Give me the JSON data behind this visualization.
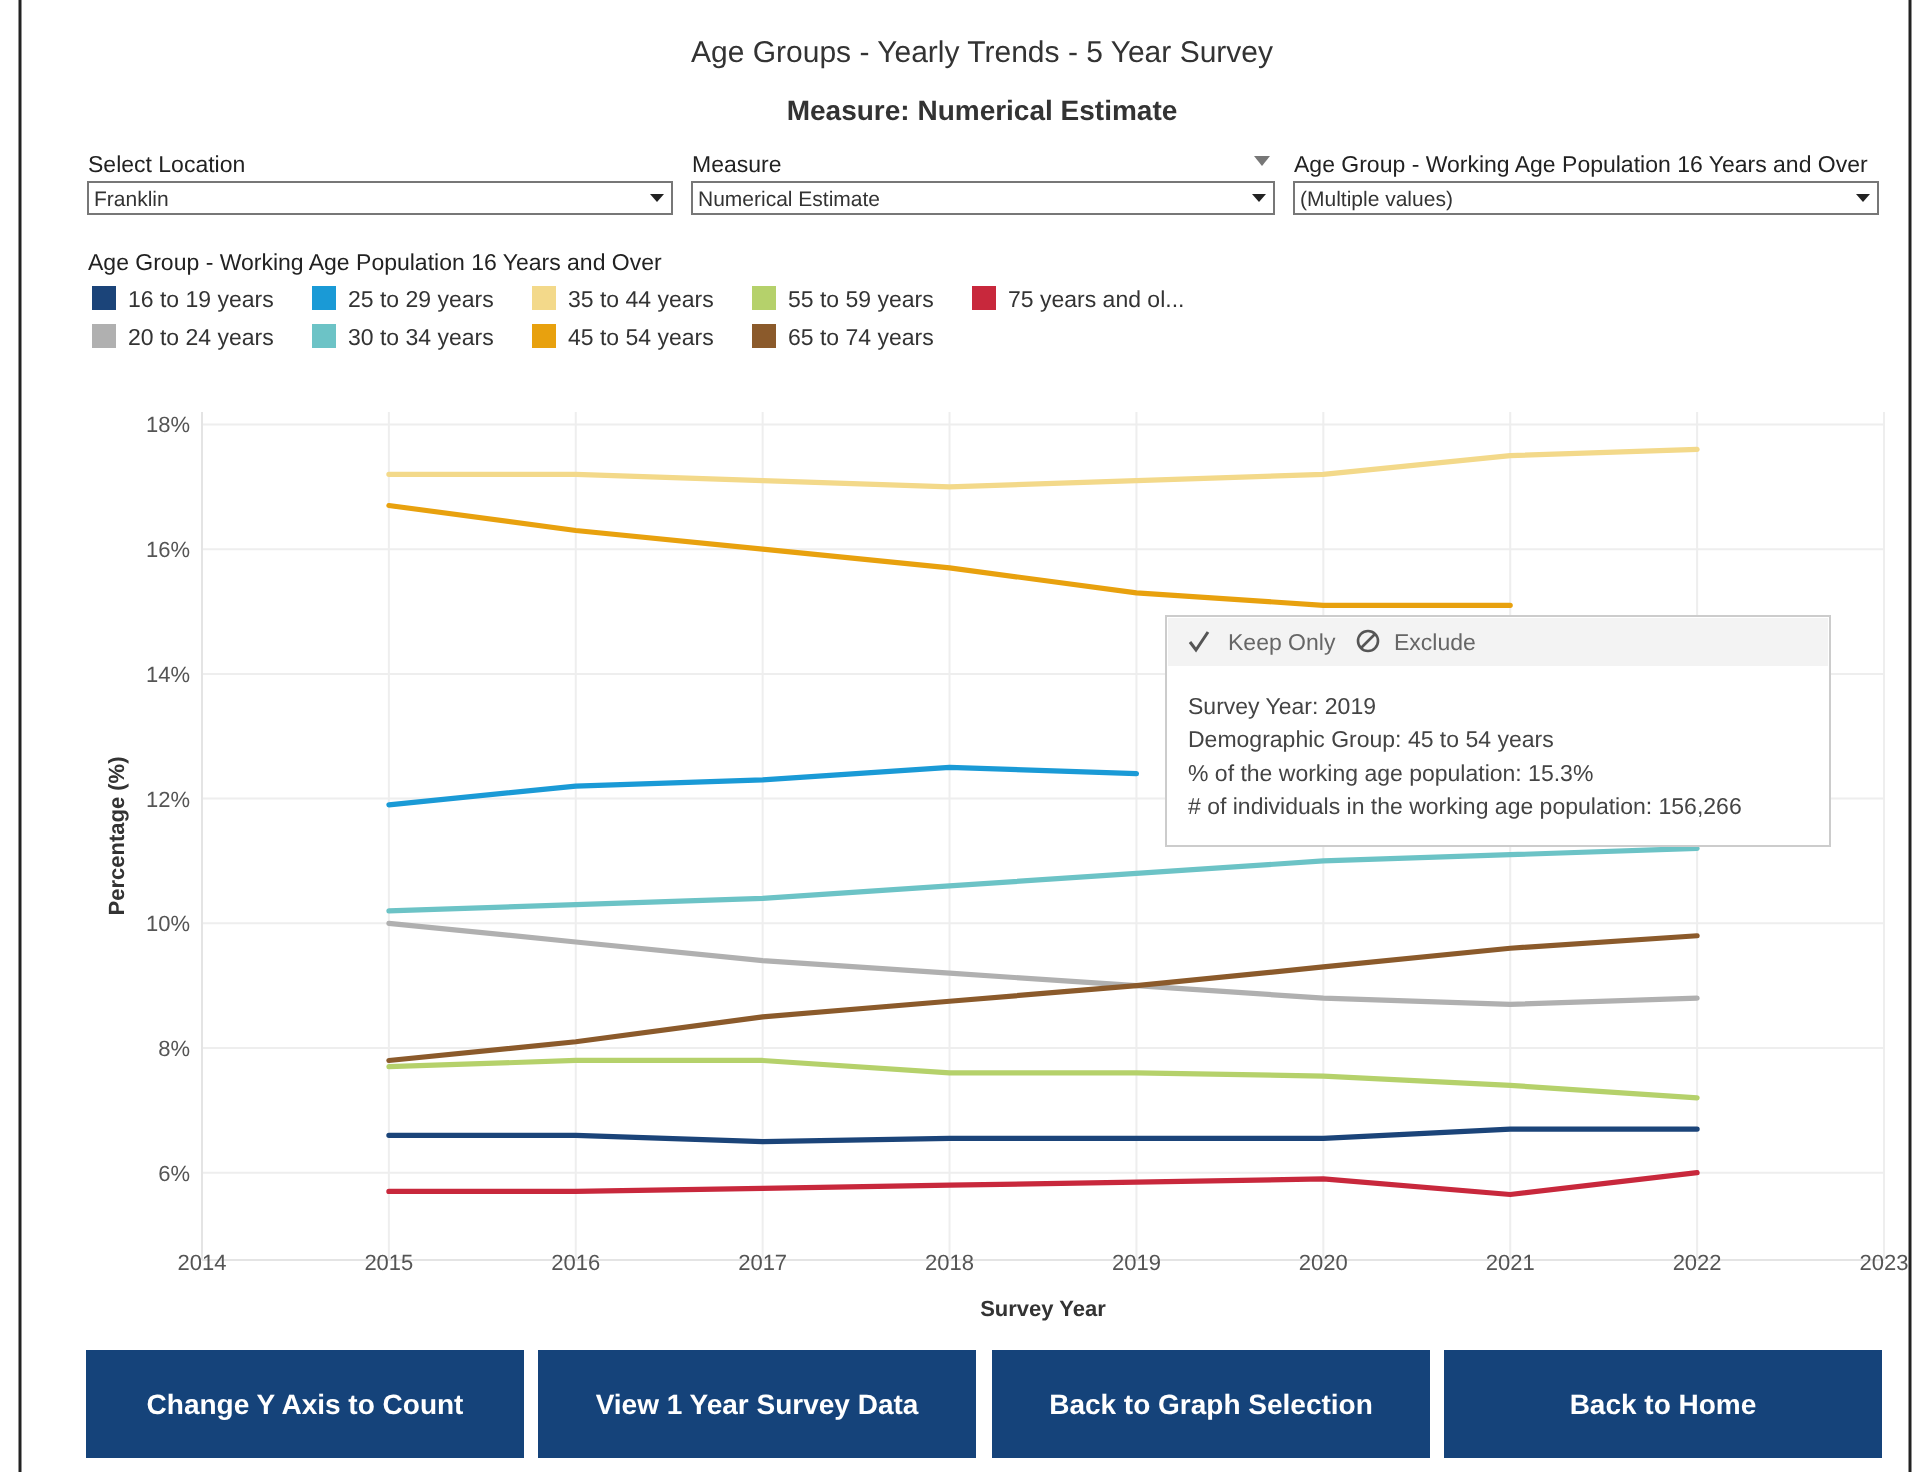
{
  "chart_data": {
    "type": "line",
    "title": "Age Groups - Yearly Trends - 5 Year Survey",
    "subtitle": "Measure: Numerical Estimate",
    "xlabel": "Survey Year",
    "ylabel": "Percentage (%)",
    "legend_title": "Age Group - Working Age Population 16 Years and Over",
    "legend": "top",
    "grid": true,
    "x": [
      2015,
      2016,
      2017,
      2018,
      2019,
      2020,
      2021,
      2022
    ],
    "xlim": [
      2014,
      2023
    ],
    "xticks": [
      2014,
      2015,
      2016,
      2017,
      2018,
      2019,
      2020,
      2021,
      2022,
      2023
    ],
    "ylim": [
      4.6,
      18.2
    ],
    "yticks": [
      {
        "value": 6,
        "label": "6%"
      },
      {
        "value": 8,
        "label": "8%"
      },
      {
        "value": 10,
        "label": "10%"
      },
      {
        "value": 12,
        "label": "12%"
      },
      {
        "value": 14,
        "label": "14%"
      },
      {
        "value": 16,
        "label": "16%"
      },
      {
        "value": 18,
        "label": "18%"
      }
    ],
    "series": [
      {
        "name": "16 to 19 years",
        "color": "#1b4479",
        "values": [
          6.6,
          6.6,
          6.5,
          6.55,
          6.55,
          6.55,
          6.7,
          6.7
        ]
      },
      {
        "name": "20 to 24 years",
        "color": "#b0b0b0",
        "values": [
          10.0,
          9.7,
          9.4,
          9.2,
          9.0,
          8.8,
          8.7,
          8.8
        ]
      },
      {
        "name": "25 to 29 years",
        "color": "#1a9ad6",
        "values": [
          11.9,
          12.2,
          12.3,
          12.5,
          12.4,
          null,
          null,
          null
        ]
      },
      {
        "name": "30 to 34 years",
        "color": "#6cc3c6",
        "values": [
          10.2,
          10.3,
          10.4,
          10.6,
          10.8,
          11.0,
          11.1,
          11.2
        ]
      },
      {
        "name": "35 to 44 years",
        "color": "#f3d98a",
        "values": [
          17.2,
          17.2,
          17.1,
          17.0,
          17.1,
          17.2,
          17.5,
          17.6
        ]
      },
      {
        "name": "45 to 54 years",
        "color": "#e8a10e",
        "values": [
          16.7,
          16.3,
          16.0,
          15.7,
          15.3,
          15.1,
          15.1,
          null
        ]
      },
      {
        "name": "55 to 59 years",
        "color": "#b5d16b",
        "values": [
          7.7,
          7.8,
          7.8,
          7.6,
          7.6,
          7.55,
          7.4,
          7.2
        ]
      },
      {
        "name": "65 to 74 years",
        "color": "#8b5a2b",
        "values": [
          7.8,
          8.1,
          8.5,
          8.75,
          9.0,
          9.3,
          9.6,
          9.8
        ]
      },
      {
        "name": "75 years and ol...",
        "color": "#c8283c",
        "values": [
          5.7,
          5.7,
          5.75,
          5.8,
          5.85,
          5.9,
          5.65,
          6.0
        ]
      }
    ],
    "annotations": [
      "Select Location",
      "Franklin",
      "Measure",
      "Numerical Estimate",
      "Age Group - Working Age Population 16 Years and Over",
      "(Multiple values)",
      "Keep Only",
      "Exclude",
      "Survey Year: 2019",
      "Demographic Group: 45 to 54 years",
      "% of the working age population: 15.3%",
      "# of individuals in the working age population: 156,266",
      "Change Y Axis to Count",
      "View 1 Year Survey Data",
      "Back to Graph Selection",
      "Back to Home"
    ]
  }
}
